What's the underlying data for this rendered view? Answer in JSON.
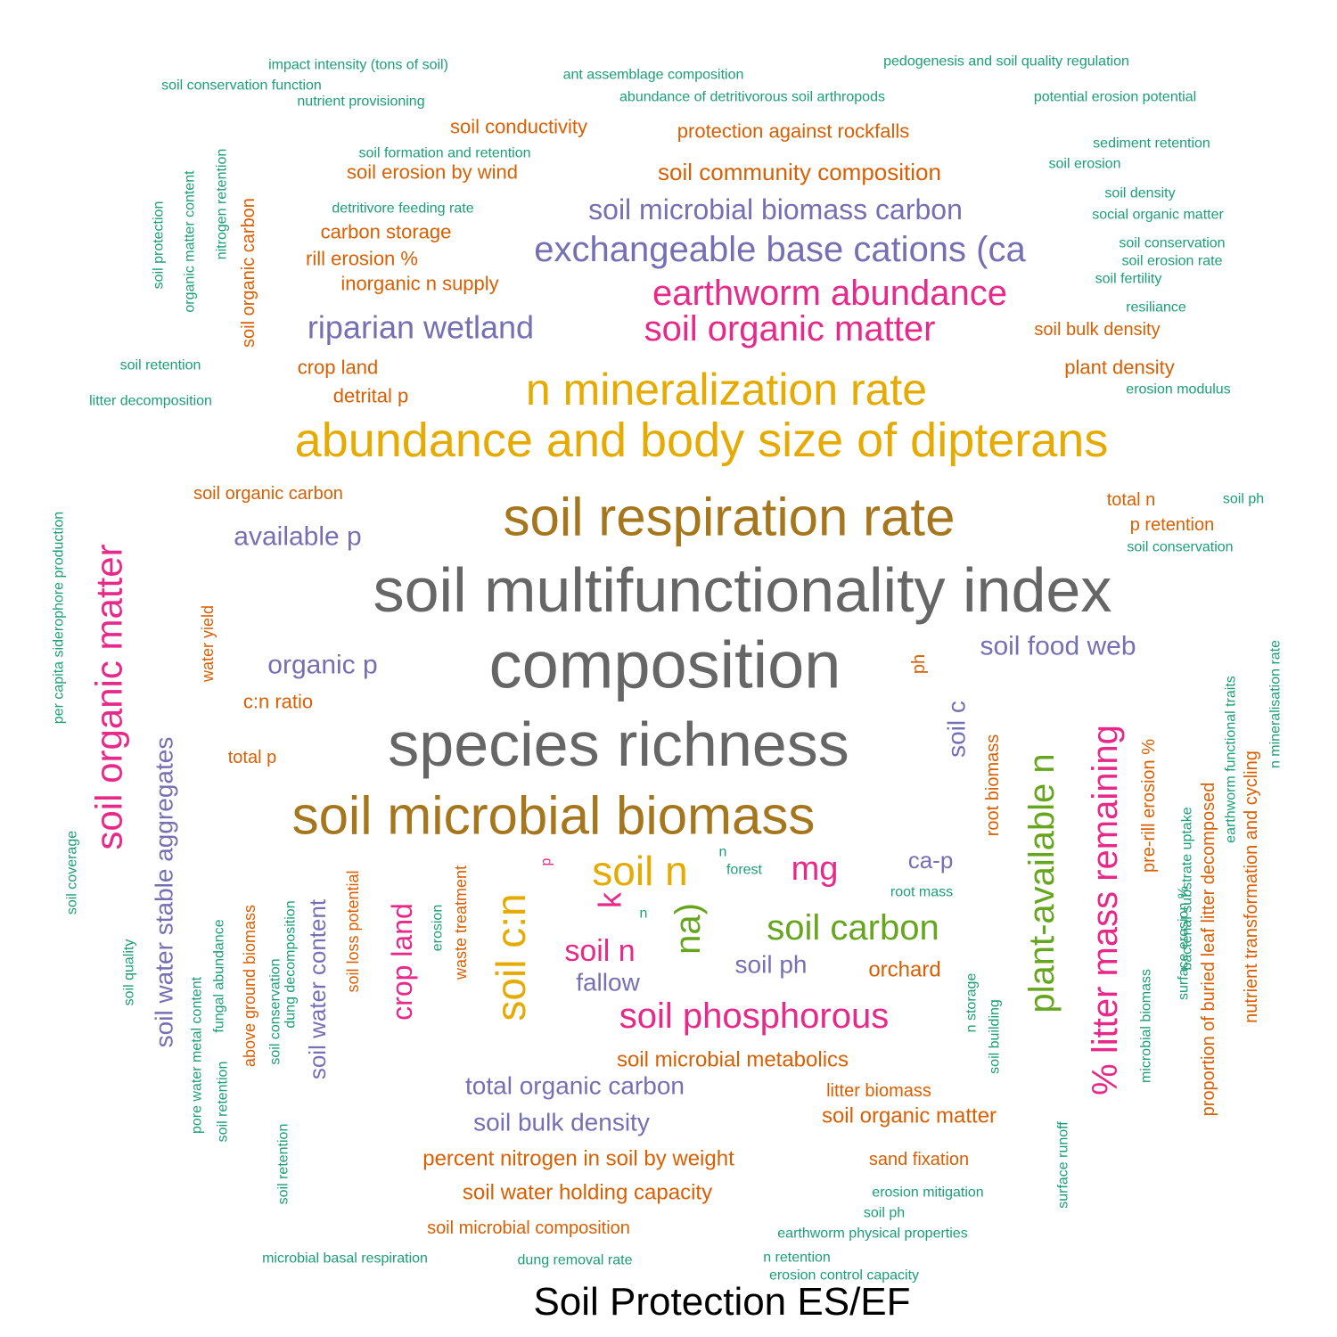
{
  "chart_data": {
    "type": "wordcloud",
    "title": "Soil Protection ES/EF",
    "palette": {
      "teal": "#1b9e77",
      "orange": "#d95f02",
      "purple": "#7570b3",
      "magenta": "#e7298a",
      "green": "#66a61e",
      "gold": "#e6ab02",
      "brown": "#a6761d",
      "gray": "#666666"
    },
    "words": [
      {
        "text": "soil multifunctionality index",
        "color": "gray"
      },
      {
        "text": "composition",
        "color": "gray"
      },
      {
        "text": "species richness",
        "color": "gray"
      },
      {
        "text": "soil respiration rate",
        "color": "brown"
      },
      {
        "text": "soil microbial biomass",
        "color": "brown"
      },
      {
        "text": "abundance and body size of dipterans",
        "color": "gold"
      },
      {
        "text": "n mineralization rate",
        "color": "gold"
      },
      {
        "text": "soil n",
        "color": "gold"
      },
      {
        "text": "soil c:n",
        "color": "gold"
      },
      {
        "text": "earthworm abundance",
        "color": "magenta"
      },
      {
        "text": "soil organic matter",
        "color": "magenta"
      },
      {
        "text": "soil organic matter",
        "color": "magenta"
      },
      {
        "text": "% litter mass remaining",
        "color": "magenta"
      },
      {
        "text": "soil phosphorous",
        "color": "magenta"
      },
      {
        "text": "soil n",
        "color": "magenta"
      },
      {
        "text": "mg",
        "color": "magenta"
      },
      {
        "text": "k",
        "color": "magenta"
      },
      {
        "text": "crop land",
        "color": "magenta"
      },
      {
        "text": "p",
        "color": "magenta"
      },
      {
        "text": "plant-available n",
        "color": "green"
      },
      {
        "text": "soil carbon",
        "color": "green"
      },
      {
        "text": "na)",
        "color": "green"
      },
      {
        "text": "exchangeable base cations (ca",
        "color": "purple"
      },
      {
        "text": "soil microbial biomass carbon",
        "color": "purple"
      },
      {
        "text": "riparian wetland",
        "color": "purple"
      },
      {
        "text": "available p",
        "color": "purple"
      },
      {
        "text": "organic p",
        "color": "purple"
      },
      {
        "text": "soil food web",
        "color": "purple"
      },
      {
        "text": "soil c",
        "color": "purple"
      },
      {
        "text": "ca-p",
        "color": "purple"
      },
      {
        "text": "soil ph",
        "color": "purple"
      },
      {
        "text": "fallow",
        "color": "purple"
      },
      {
        "text": "total organic carbon",
        "color": "purple"
      },
      {
        "text": "soil bulk density",
        "color": "purple"
      },
      {
        "text": "soil water stable aggregates",
        "color": "purple"
      },
      {
        "text": "soil water content",
        "color": "purple"
      },
      {
        "text": "soil conductivity",
        "color": "orange"
      },
      {
        "text": "protection against rockfalls",
        "color": "orange"
      },
      {
        "text": "soil community composition",
        "color": "orange"
      },
      {
        "text": "soil erosion by wind",
        "color": "orange"
      },
      {
        "text": "carbon storage",
        "color": "orange"
      },
      {
        "text": "rill erosion %",
        "color": "orange"
      },
      {
        "text": "inorganic n supply",
        "color": "orange"
      },
      {
        "text": "soil bulk density",
        "color": "orange"
      },
      {
        "text": "crop land",
        "color": "orange"
      },
      {
        "text": "plant density",
        "color": "orange"
      },
      {
        "text": "detrital p",
        "color": "orange"
      },
      {
        "text": "soil organic carbon",
        "color": "orange"
      },
      {
        "text": "total n",
        "color": "orange"
      },
      {
        "text": "p retention",
        "color": "orange"
      },
      {
        "text": "c:n ratio",
        "color": "orange"
      },
      {
        "text": "total p",
        "color": "orange"
      },
      {
        "text": "ph",
        "color": "orange"
      },
      {
        "text": "orchard",
        "color": "orange"
      },
      {
        "text": "soil microbial metabolics",
        "color": "orange"
      },
      {
        "text": "litter biomass",
        "color": "orange"
      },
      {
        "text": "soil organic matter",
        "color": "orange"
      },
      {
        "text": "percent nitrogen in soil by weight",
        "color": "orange"
      },
      {
        "text": "sand fixation",
        "color": "orange"
      },
      {
        "text": "soil water holding capacity",
        "color": "orange"
      },
      {
        "text": "soil microbial composition",
        "color": "orange"
      },
      {
        "text": "soil organic carbon",
        "color": "orange"
      },
      {
        "text": "water yield",
        "color": "orange"
      },
      {
        "text": "above ground biomass",
        "color": "orange"
      },
      {
        "text": "soil loss potential",
        "color": "orange"
      },
      {
        "text": "waste treatment",
        "color": "orange"
      },
      {
        "text": "root biomass",
        "color": "orange"
      },
      {
        "text": "pre-rill erosion %",
        "color": "orange"
      },
      {
        "text": "proportion of buried leaf litter decomposed",
        "color": "orange"
      },
      {
        "text": "nutrient transformation and cycling",
        "color": "orange"
      },
      {
        "text": "impact intensity (tons of soil)",
        "color": "teal"
      },
      {
        "text": "ant assemblage composition",
        "color": "teal"
      },
      {
        "text": "pedogenesis and soil quality regulation",
        "color": "teal"
      },
      {
        "text": "soil conservation function",
        "color": "teal"
      },
      {
        "text": "nutrient provisioning",
        "color": "teal"
      },
      {
        "text": "abundance of detritivorous soil arthropods",
        "color": "teal"
      },
      {
        "text": "potential erosion potential",
        "color": "teal"
      },
      {
        "text": "sediment retention",
        "color": "teal"
      },
      {
        "text": "soil formation and retention",
        "color": "teal"
      },
      {
        "text": "soil erosion",
        "color": "teal"
      },
      {
        "text": "soil density",
        "color": "teal"
      },
      {
        "text": "detritivore feeding rate",
        "color": "teal"
      },
      {
        "text": "social organic matter",
        "color": "teal"
      },
      {
        "text": "soil conservation",
        "color": "teal"
      },
      {
        "text": "soil erosion rate",
        "color": "teal"
      },
      {
        "text": "soil fertility",
        "color": "teal"
      },
      {
        "text": "resiliance",
        "color": "teal"
      },
      {
        "text": "soil retention",
        "color": "teal"
      },
      {
        "text": "erosion modulus",
        "color": "teal"
      },
      {
        "text": "litter decomposition",
        "color": "teal"
      },
      {
        "text": "soil ph",
        "color": "teal"
      },
      {
        "text": "soil conservation",
        "color": "teal"
      },
      {
        "text": "forest",
        "color": "teal"
      },
      {
        "text": "n",
        "color": "teal"
      },
      {
        "text": "n",
        "color": "teal"
      },
      {
        "text": "root mass",
        "color": "teal"
      },
      {
        "text": "erosion mitigation",
        "color": "teal"
      },
      {
        "text": "soil ph",
        "color": "teal"
      },
      {
        "text": "earthworm physical properties",
        "color": "teal"
      },
      {
        "text": "microbial basal respiration",
        "color": "teal"
      },
      {
        "text": "dung removal rate",
        "color": "teal"
      },
      {
        "text": "n retention",
        "color": "teal"
      },
      {
        "text": "erosion control capacity",
        "color": "teal"
      },
      {
        "text": "soil protection",
        "color": "teal"
      },
      {
        "text": "organic matter content",
        "color": "teal"
      },
      {
        "text": "nitrogen retention",
        "color": "teal"
      },
      {
        "text": "per capita siderophore production",
        "color": "teal"
      },
      {
        "text": "soil coverage",
        "color": "teal"
      },
      {
        "text": "soil quality",
        "color": "teal"
      },
      {
        "text": "pore water metal content",
        "color": "teal"
      },
      {
        "text": "soil retention",
        "color": "teal"
      },
      {
        "text": "fungal abundance",
        "color": "teal"
      },
      {
        "text": "soil retention",
        "color": "teal"
      },
      {
        "text": "soil conservation",
        "color": "teal"
      },
      {
        "text": "dung decomposition",
        "color": "teal"
      },
      {
        "text": "erosion",
        "color": "teal"
      },
      {
        "text": "n storage",
        "color": "teal"
      },
      {
        "text": "soil building",
        "color": "teal"
      },
      {
        "text": "surface runoff",
        "color": "teal"
      },
      {
        "text": "microbial biomass",
        "color": "teal"
      },
      {
        "text": "surface erosion %",
        "color": "teal"
      },
      {
        "text": "bacterial substrate uptake",
        "color": "teal"
      },
      {
        "text": "earthworm functional traits",
        "color": "teal"
      },
      {
        "text": "n mineralisation rate",
        "color": "teal"
      }
    ]
  }
}
